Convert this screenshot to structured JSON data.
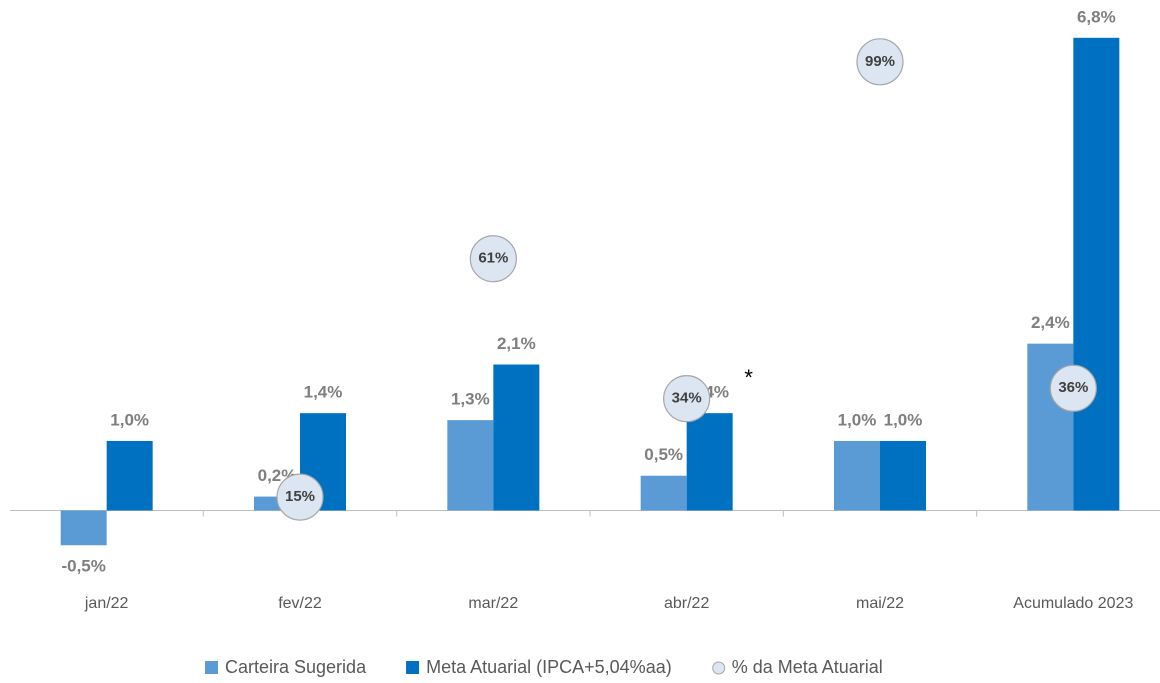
{
  "chart_data": {
    "type": "bar",
    "categories": [
      "jan/22",
      "fev/22",
      "mar/22",
      "abr/22",
      "mai/22",
      "Acumulado 2023"
    ],
    "series": [
      {
        "name": "Carteira Sugerida",
        "color": "#5b9bd5",
        "values": [
          -0.5,
          0.2,
          1.3,
          0.5,
          1.0,
          2.4
        ],
        "value_labels": [
          "-0,5%",
          "0,2%",
          "1,3%",
          "0,5%",
          "1,0%",
          "2,4%"
        ]
      },
      {
        "name": "Meta Atuarial (IPCA+5,04%aa)",
        "color": "#0070c0",
        "values": [
          1.0,
          1.4,
          2.1,
          1.4,
          1.0,
          6.8
        ],
        "value_labels": [
          "1,0%",
          "1,4%",
          "2,1%",
          "1,4%",
          "1,0%",
          "6,8%"
        ]
      },
      {
        "name": "% da Meta Atuarial",
        "type": "scatter",
        "axis": "y2",
        "color": "#dce6f2",
        "values": [
          null,
          15,
          61,
          34,
          99,
          36
        ],
        "value_labels": [
          null,
          "15%",
          "61%",
          "34%",
          "99%",
          "36%"
        ]
      }
    ],
    "annotations": [
      {
        "text": "*",
        "category": 3
      }
    ],
    "ylim": [
      -1,
      7.2
    ],
    "y2lim": [
      -1,
      109
    ],
    "legend": "bottom"
  }
}
